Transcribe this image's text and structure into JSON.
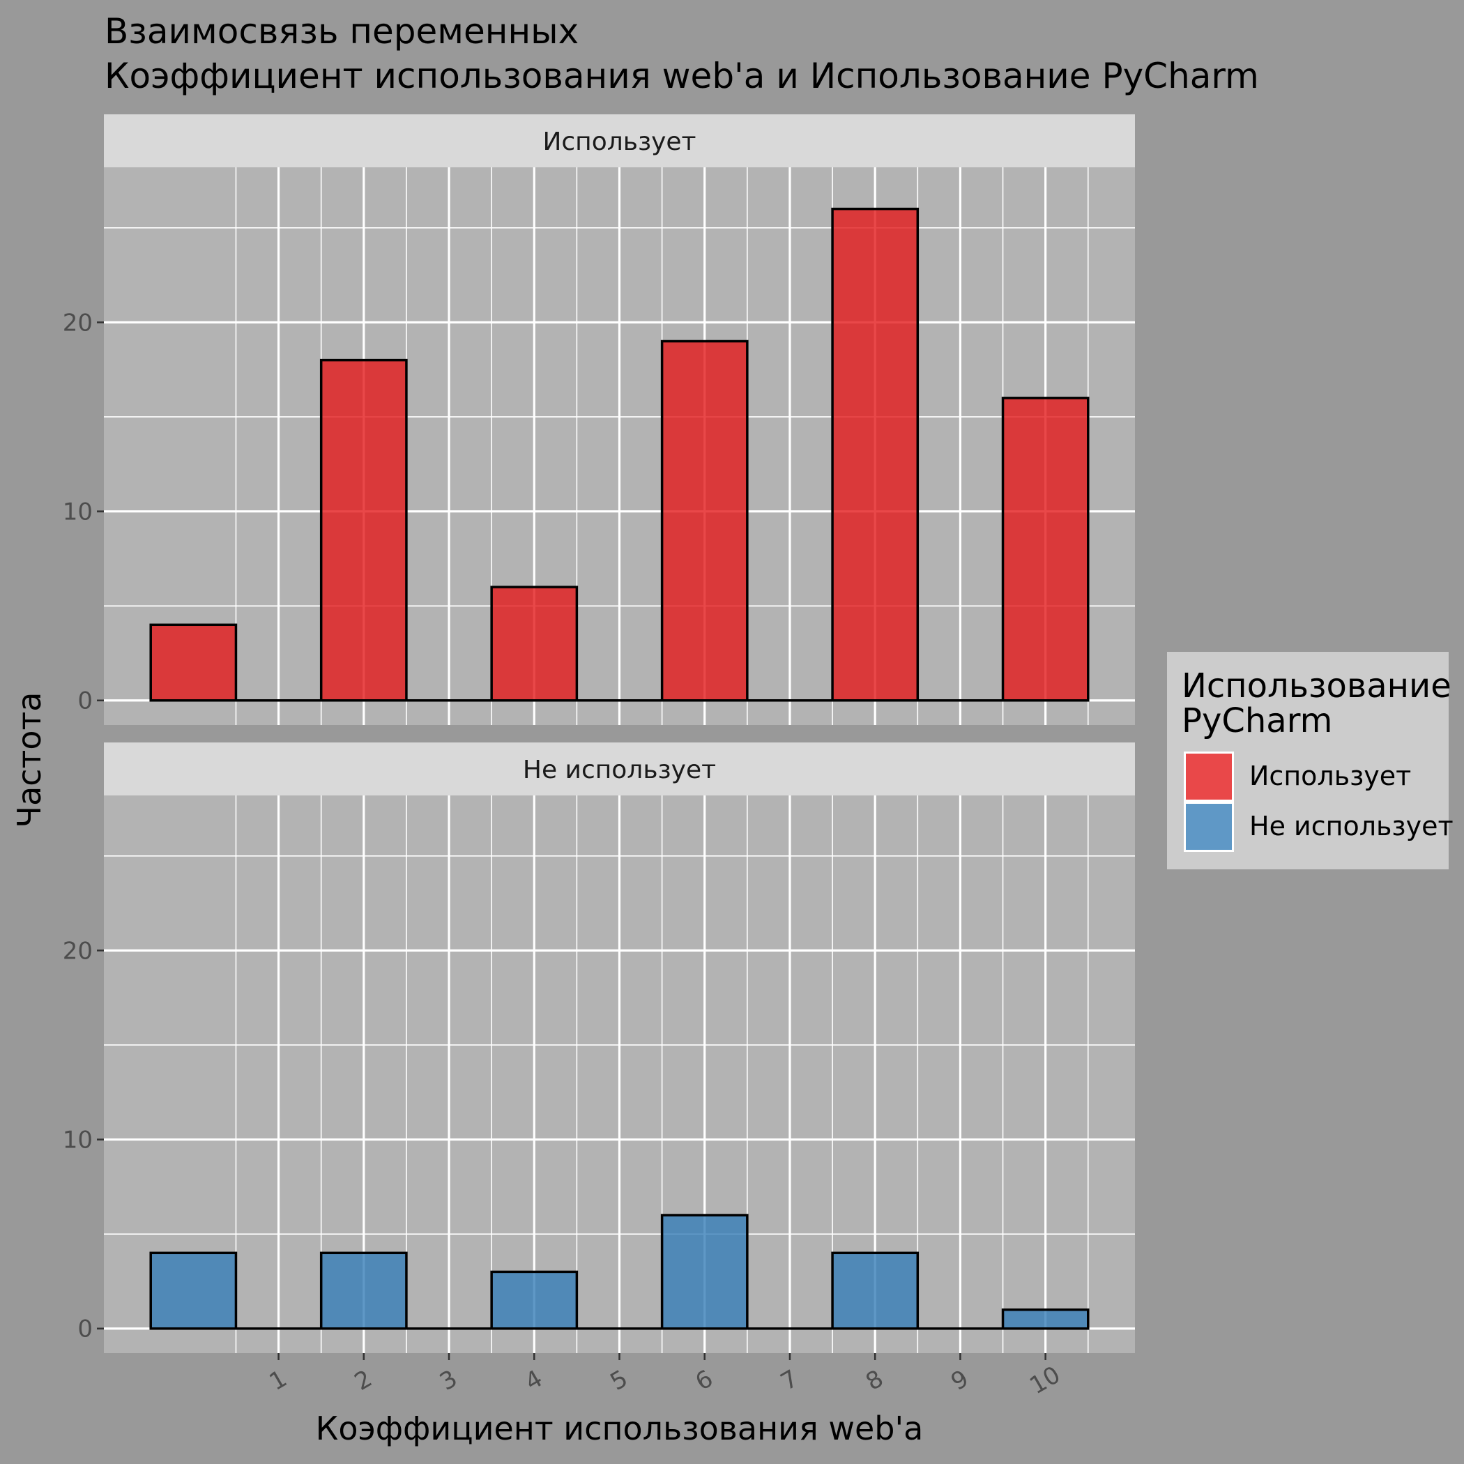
{
  "chart_data": {
    "type": "bar",
    "title_line1": "Взаимосвязь переменных",
    "title_line2": " Коэффициент использования web'a и Использование PyCharm",
    "xlabel": "Коэффициент использования web'a",
    "ylabel": "Частота",
    "x_ticks": [
      "1",
      "2",
      "3",
      "4",
      "5",
      "6",
      "7",
      "8",
      "9",
      "10"
    ],
    "y_ticks": [
      "0",
      "10",
      "20"
    ],
    "ylim": [
      -1.3,
      28.2
    ],
    "xlim": [
      -1.05,
      11.05
    ],
    "bin_width": 1,
    "grid": true,
    "legend": {
      "title_line1": "Использование",
      "title_line2": "PyCharm",
      "position": "right",
      "items": [
        {
          "label": "Использует",
          "color": "#E41A1C"
        },
        {
          "label": "Не использует",
          "color": "#377EB8"
        }
      ]
    },
    "panels": [
      {
        "strip": "Использует",
        "color": "#E41A1C",
        "bin_centers": [
          0,
          1,
          2,
          3,
          4,
          5,
          6,
          7,
          8,
          9,
          10
        ],
        "values": [
          4,
          0,
          18,
          0,
          6,
          0,
          19,
          0,
          26,
          0,
          16
        ]
      },
      {
        "strip": "Не использует",
        "color": "#377EB8",
        "bin_centers": [
          0,
          1,
          2,
          3,
          4,
          5,
          6,
          7,
          8,
          9,
          10
        ],
        "values": [
          4,
          0,
          4,
          0,
          3,
          0,
          6,
          0,
          4,
          0,
          1
        ]
      }
    ]
  },
  "colors": {
    "background": "#999999",
    "panel": "#B3B3B3",
    "strip": "#D9D9D9",
    "legend": "#CCCCCC",
    "grid": "#FFFFFF",
    "text": "#000000",
    "tick_text": "#4D4D4D"
  }
}
